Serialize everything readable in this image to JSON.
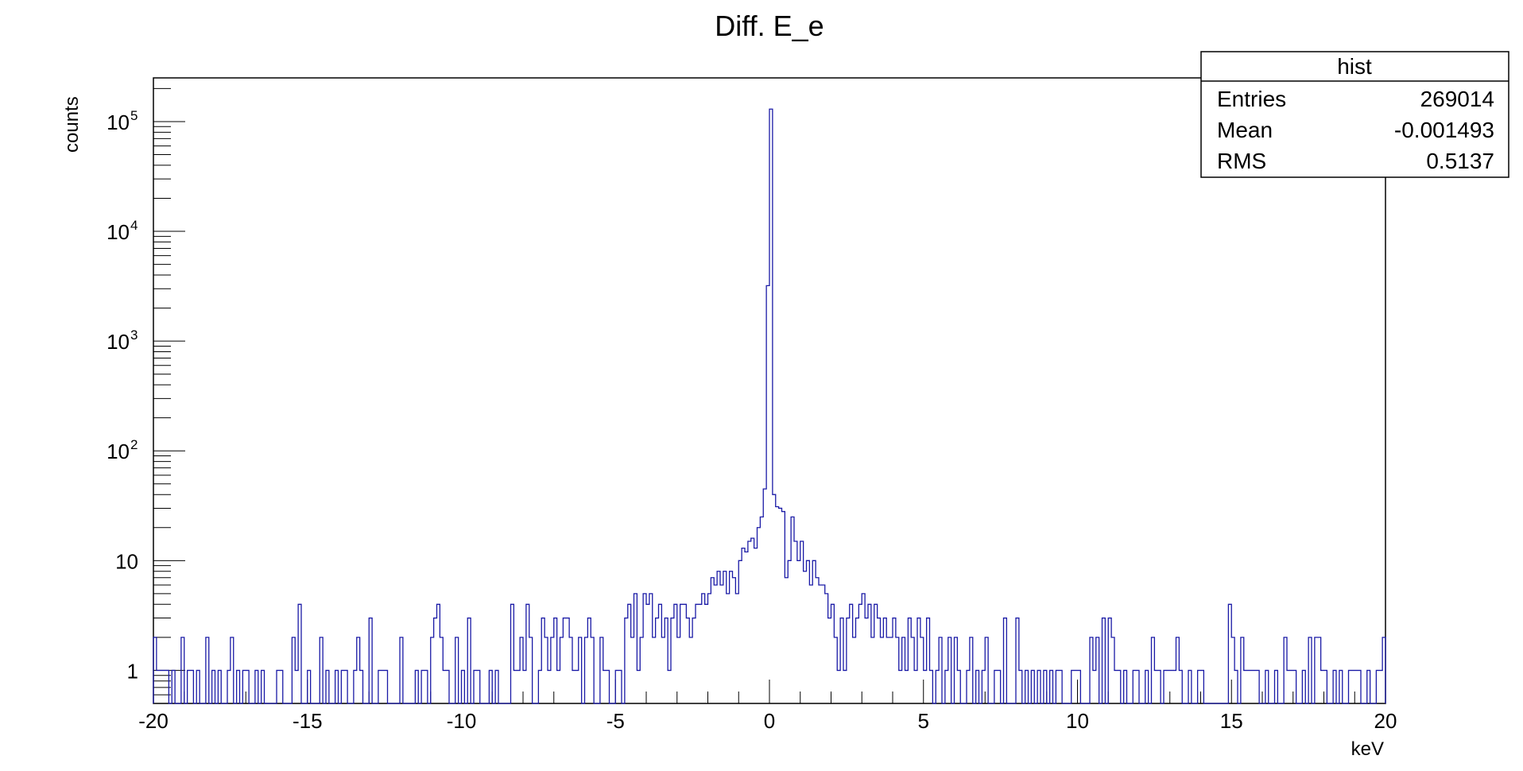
{
  "chart_data": {
    "type": "histogram",
    "title": "Diff. E_e",
    "xlabel": "keV",
    "ylabel": "counts",
    "xlim": [
      -20,
      20
    ],
    "ylim": [
      0.5,
      250000
    ],
    "yscale": "log",
    "bins": 400,
    "bin_width": 0.1,
    "line_color": "#1a1aa6",
    "x_ticks": [
      -20,
      -15,
      -10,
      -5,
      0,
      5,
      10,
      15,
      20
    ],
    "y_tick_labels": [
      {
        "value": 1,
        "base": "1",
        "exp": ""
      },
      {
        "value": 10,
        "base": "10",
        "exp": ""
      },
      {
        "value": 100,
        "base": "10",
        "exp": "2"
      },
      {
        "value": 1000,
        "base": "10",
        "exp": "3"
      },
      {
        "value": 10000,
        "base": "10",
        "exp": "4"
      },
      {
        "value": 100000,
        "base": "10",
        "exp": "5"
      }
    ],
    "nonzero_bins": [
      [
        -19.95,
        2
      ],
      [
        -19.85,
        1
      ],
      [
        -19.75,
        1
      ],
      [
        -19.65,
        1
      ],
      [
        -19.55,
        1
      ],
      [
        -19.35,
        1
      ],
      [
        -19.05,
        2
      ],
      [
        -18.85,
        1
      ],
      [
        -18.75,
        1
      ],
      [
        -18.55,
        1
      ],
      [
        -18.25,
        2
      ],
      [
        -18.05,
        1
      ],
      [
        -17.85,
        1
      ],
      [
        -17.55,
        1
      ],
      [
        -17.45,
        2
      ],
      [
        -17.25,
        1
      ],
      [
        -17.05,
        1
      ],
      [
        -16.95,
        1
      ],
      [
        -16.65,
        1
      ],
      [
        -16.45,
        1
      ],
      [
        -15.95,
        1
      ],
      [
        -15.85,
        1
      ],
      [
        -15.45,
        2
      ],
      [
        -15.35,
        1
      ],
      [
        -15.25,
        4
      ],
      [
        -14.95,
        1
      ],
      [
        -14.55,
        2
      ],
      [
        -14.35,
        1
      ],
      [
        -14.05,
        1
      ],
      [
        -13.85,
        1
      ],
      [
        -13.75,
        1
      ],
      [
        -13.45,
        1
      ],
      [
        -13.35,
        2
      ],
      [
        -13.25,
        1
      ],
      [
        -12.95,
        3
      ],
      [
        -12.65,
        1
      ],
      [
        -12.55,
        1
      ],
      [
        -12.45,
        1
      ],
      [
        -11.95,
        2
      ],
      [
        -11.45,
        1
      ],
      [
        -11.25,
        1
      ],
      [
        -11.15,
        1
      ],
      [
        -10.95,
        2
      ],
      [
        -10.85,
        3
      ],
      [
        -10.75,
        4
      ],
      [
        -10.65,
        2
      ],
      [
        -10.55,
        1
      ],
      [
        -10.45,
        1
      ],
      [
        -10.15,
        2
      ],
      [
        -9.95,
        1
      ],
      [
        -9.75,
        3
      ],
      [
        -9.55,
        1
      ],
      [
        -9.45,
        1
      ],
      [
        -9.05,
        1
      ],
      [
        -8.85,
        1
      ],
      [
        -8.35,
        4
      ],
      [
        -8.25,
        1
      ],
      [
        -8.15,
        1
      ],
      [
        -8.05,
        2
      ],
      [
        -7.95,
        1
      ],
      [
        -7.85,
        4
      ],
      [
        -7.75,
        2
      ],
      [
        -7.45,
        1
      ],
      [
        -7.35,
        3
      ],
      [
        -7.25,
        2
      ],
      [
        -7.15,
        1
      ],
      [
        -7.05,
        2
      ],
      [
        -6.95,
        3
      ],
      [
        -6.85,
        1
      ],
      [
        -6.75,
        2
      ],
      [
        -6.65,
        3
      ],
      [
        -6.55,
        3
      ],
      [
        -6.45,
        2
      ],
      [
        -6.35,
        1
      ],
      [
        -6.25,
        1
      ],
      [
        -6.15,
        2
      ],
      [
        -5.95,
        2
      ],
      [
        -5.85,
        3
      ],
      [
        -5.75,
        2
      ],
      [
        -5.45,
        2
      ],
      [
        -5.35,
        1
      ],
      [
        -5.25,
        1
      ],
      [
        -4.95,
        1
      ],
      [
        -4.85,
        1
      ],
      [
        -4.65,
        3
      ],
      [
        -4.55,
        4
      ],
      [
        -4.45,
        2
      ],
      [
        -4.35,
        5
      ],
      [
        -4.25,
        1
      ],
      [
        -4.15,
        2
      ],
      [
        -4.05,
        5
      ],
      [
        -3.95,
        4
      ],
      [
        -3.85,
        5
      ],
      [
        -3.75,
        2
      ],
      [
        -3.65,
        3
      ],
      [
        -3.55,
        4
      ],
      [
        -3.45,
        2
      ],
      [
        -3.35,
        3
      ],
      [
        -3.25,
        1
      ],
      [
        -3.15,
        3
      ],
      [
        -3.05,
        4
      ],
      [
        -2.95,
        2
      ],
      [
        -2.85,
        4
      ],
      [
        -2.75,
        4
      ],
      [
        -2.65,
        3
      ],
      [
        -2.55,
        2
      ],
      [
        -2.45,
        3
      ],
      [
        -2.35,
        4
      ],
      [
        -2.25,
        4
      ],
      [
        -2.15,
        5
      ],
      [
        -2.05,
        4
      ],
      [
        -1.95,
        5
      ],
      [
        -1.85,
        7
      ],
      [
        -1.75,
        6
      ],
      [
        -1.65,
        8
      ],
      [
        -1.55,
        6
      ],
      [
        -1.45,
        8
      ],
      [
        -1.35,
        5
      ],
      [
        -1.25,
        8
      ],
      [
        -1.15,
        7
      ],
      [
        -1.05,
        5
      ],
      [
        -0.95,
        10
      ],
      [
        -0.85,
        13
      ],
      [
        -0.75,
        12
      ],
      [
        -0.65,
        15
      ],
      [
        -0.55,
        16
      ],
      [
        -0.45,
        13
      ],
      [
        -0.35,
        20
      ],
      [
        -0.25,
        25
      ],
      [
        -0.15,
        45
      ],
      [
        -0.05,
        3200
      ],
      [
        0.05,
        130000
      ],
      [
        0.15,
        40
      ],
      [
        0.25,
        31
      ],
      [
        0.35,
        30
      ],
      [
        0.45,
        28
      ],
      [
        0.55,
        7
      ],
      [
        0.65,
        10
      ],
      [
        0.75,
        25
      ],
      [
        0.85,
        15
      ],
      [
        0.95,
        10
      ],
      [
        1.05,
        15
      ],
      [
        1.15,
        8
      ],
      [
        1.25,
        10
      ],
      [
        1.35,
        6
      ],
      [
        1.45,
        10
      ],
      [
        1.55,
        7
      ],
      [
        1.65,
        6
      ],
      [
        1.75,
        6
      ],
      [
        1.85,
        5
      ],
      [
        1.95,
        3
      ],
      [
        2.05,
        4
      ],
      [
        2.15,
        2
      ],
      [
        2.25,
        1
      ],
      [
        2.35,
        3
      ],
      [
        2.45,
        1
      ],
      [
        2.55,
        3
      ],
      [
        2.65,
        4
      ],
      [
        2.75,
        2
      ],
      [
        2.85,
        3
      ],
      [
        2.95,
        4
      ],
      [
        3.05,
        5
      ],
      [
        3.15,
        3
      ],
      [
        3.25,
        4
      ],
      [
        3.35,
        2
      ],
      [
        3.45,
        4
      ],
      [
        3.55,
        3
      ],
      [
        3.65,
        2
      ],
      [
        3.75,
        3
      ],
      [
        3.85,
        2
      ],
      [
        3.95,
        2
      ],
      [
        4.05,
        3
      ],
      [
        4.15,
        2
      ],
      [
        4.25,
        1
      ],
      [
        4.35,
        2
      ],
      [
        4.45,
        1
      ],
      [
        4.55,
        3
      ],
      [
        4.65,
        2
      ],
      [
        4.75,
        1
      ],
      [
        4.85,
        3
      ],
      [
        4.95,
        2
      ],
      [
        5.05,
        1
      ],
      [
        5.15,
        3
      ],
      [
        5.25,
        1
      ],
      [
        5.45,
        1
      ],
      [
        5.55,
        2
      ],
      [
        5.75,
        1
      ],
      [
        5.85,
        2
      ],
      [
        6.05,
        2
      ],
      [
        6.15,
        1
      ],
      [
        6.45,
        1
      ],
      [
        6.55,
        2
      ],
      [
        6.75,
        1
      ],
      [
        6.95,
        1
      ],
      [
        7.05,
        2
      ],
      [
        7.35,
        1
      ],
      [
        7.45,
        1
      ],
      [
        7.65,
        3
      ],
      [
        8.05,
        3
      ],
      [
        8.15,
        1
      ],
      [
        8.35,
        1
      ],
      [
        8.55,
        1
      ],
      [
        8.75,
        1
      ],
      [
        8.95,
        1
      ],
      [
        9.15,
        1
      ],
      [
        9.35,
        1
      ],
      [
        9.45,
        1
      ],
      [
        9.85,
        1
      ],
      [
        9.95,
        1
      ],
      [
        10.05,
        1
      ],
      [
        10.45,
        2
      ],
      [
        10.55,
        1
      ],
      [
        10.65,
        2
      ],
      [
        10.85,
        3
      ],
      [
        11.05,
        3
      ],
      [
        11.15,
        2
      ],
      [
        11.25,
        1
      ],
      [
        11.35,
        1
      ],
      [
        11.55,
        1
      ],
      [
        11.85,
        1
      ],
      [
        11.95,
        1
      ],
      [
        12.25,
        1
      ],
      [
        12.45,
        2
      ],
      [
        12.55,
        1
      ],
      [
        12.65,
        1
      ],
      [
        12.85,
        1
      ],
      [
        12.95,
        1
      ],
      [
        13.05,
        1
      ],
      [
        13.15,
        1
      ],
      [
        13.25,
        2
      ],
      [
        13.35,
        1
      ],
      [
        13.65,
        1
      ],
      [
        13.95,
        1
      ],
      [
        14.05,
        1
      ],
      [
        14.95,
        4
      ],
      [
        15.05,
        2
      ],
      [
        15.15,
        1
      ],
      [
        15.35,
        2
      ],
      [
        15.45,
        1
      ],
      [
        15.55,
        1
      ],
      [
        15.65,
        1
      ],
      [
        15.75,
        1
      ],
      [
        15.85,
        1
      ],
      [
        16.15,
        1
      ],
      [
        16.45,
        1
      ],
      [
        16.75,
        2
      ],
      [
        16.85,
        1
      ],
      [
        16.95,
        1
      ],
      [
        17.05,
        1
      ],
      [
        17.35,
        1
      ],
      [
        17.55,
        2
      ],
      [
        17.75,
        2
      ],
      [
        17.85,
        2
      ],
      [
        17.95,
        1
      ],
      [
        18.05,
        1
      ],
      [
        18.35,
        1
      ],
      [
        18.55,
        1
      ],
      [
        18.85,
        1
      ],
      [
        18.95,
        1
      ],
      [
        19.05,
        1
      ],
      [
        19.15,
        1
      ],
      [
        19.45,
        1
      ],
      [
        19.75,
        1
      ],
      [
        19.85,
        1
      ],
      [
        19.95,
        2
      ]
    ]
  },
  "stats_box": {
    "title": "hist",
    "rows": [
      {
        "label": "Entries",
        "value": "269014"
      },
      {
        "label": "Mean",
        "value": "-0.001493"
      },
      {
        "label": "RMS",
        "value": "0.5137"
      }
    ]
  }
}
